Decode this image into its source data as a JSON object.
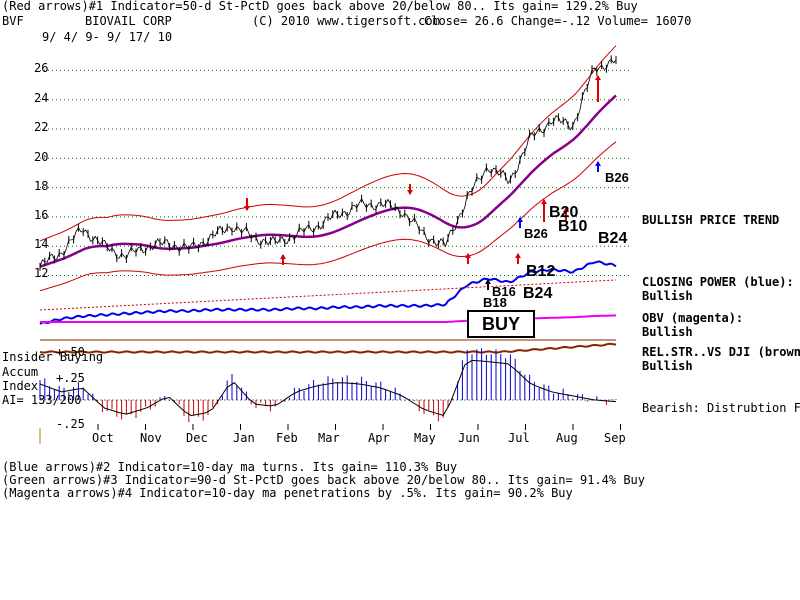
{
  "header": {
    "line1": "(Red arrows)#1 Indicator=50-d St-PctD goes back above 20/below 80.. Its gain= 129.2% Buy",
    "symbol": "BVF",
    "company": "BIOVAIL CORP",
    "copyright": "(C) 2010 www.tigersoft.com",
    "quote": "Close= 26.6  Change=-.12 Volume= 16070",
    "date_range": "9/ 4/ 9- 9/ 17/ 10"
  },
  "side_labels": {
    "trend": "BULLISH PRICE TREND",
    "closing_power": "CLOSING POWER (blue):",
    "closing_power_status": "Bullish",
    "obv": "OBV (magenta):",
    "obv_status": "Bullish",
    "relstr": "REL.STR..VS DJI (brown):",
    "relstr_status": "Bullish",
    "bearish": "Bearish: Distrubtion Falling."
  },
  "panel_labels": {
    "insider": "Insider Buying",
    "accum": "Accum",
    "index": "Index",
    "ai": "AI= 133/200",
    "plus50": "+.50",
    "plus25": "+.25",
    "minus25": "-.25"
  },
  "signals": {
    "buy": "BUY",
    "b26_top": "B26",
    "b20": "B20",
    "b10": "B10",
    "b26_mid": "B26",
    "b24_right": "B24",
    "b12": "B12",
    "b16": "B16",
    "b24_low": "B24",
    "b18": "B18"
  },
  "footer": {
    "line1": "(Blue arrows)#2 Indicator=10-day ma turns. Its gain= 110.3% Buy",
    "line2": "(Green arrows)#3 Indicator=90-d St-PctD goes back above 20/below 80.. Its gain= 91.4% Buy",
    "line3": "(Magenta arrows)#4 Indicator=10-day ma penetrations by .5%. Its gain= 90.2% Buy"
  },
  "colors": {
    "price": "#000000",
    "bands": "#cc0000",
    "ma": "#880088",
    "closing_power": "#0000ee",
    "obv": "#ee00ee",
    "relstr": "#882200",
    "accum_pos": "#0000cc",
    "accum_neg": "#cc0000",
    "grid": "#007700"
  },
  "chart_data": {
    "type": "line",
    "title": "BIOVAIL CORP",
    "xlabel": "",
    "ylabel": "",
    "ylim": [
      11,
      28
    ],
    "yticks": [
      12,
      14,
      16,
      18,
      20,
      22,
      24,
      26
    ],
    "grid": true,
    "x_ticks": [
      "Oct",
      "Nov",
      "Dec",
      "Jan",
      "Feb",
      "Mar",
      "Apr",
      "May",
      "Jun",
      "Jul",
      "Aug",
      "Sep"
    ],
    "x": [
      "2009-09-04",
      "2009-09-18",
      "2009-10-02",
      "2009-10-16",
      "2009-10-30",
      "2009-11-13",
      "2009-11-27",
      "2009-12-11",
      "2009-12-25",
      "2010-01-08",
      "2010-01-22",
      "2010-02-05",
      "2010-02-19",
      "2010-03-05",
      "2010-03-19",
      "2010-04-02",
      "2010-04-16",
      "2010-04-30",
      "2010-05-14",
      "2010-05-28",
      "2010-06-11",
      "2010-06-25",
      "2010-07-09",
      "2010-07-23",
      "2010-08-06",
      "2010-08-20",
      "2010-09-03",
      "2010-09-17"
    ],
    "series": [
      {
        "name": "Price",
        "values": [
          12.6,
          13.6,
          15.2,
          14.0,
          13.3,
          14.0,
          14.2,
          13.8,
          14.6,
          15.4,
          14.6,
          14.2,
          14.8,
          15.4,
          16.2,
          16.8,
          16.9,
          16.4,
          14.8,
          14.0,
          17.2,
          19.5,
          18.4,
          21.4,
          22.6,
          22.3,
          26.2,
          26.6
        ]
      },
      {
        "name": "Closing Power",
        "values": [
          -2.0,
          -1.6,
          -1.4,
          -1.3,
          -1.2,
          -1.1,
          -1.0,
          -1.0,
          -0.9,
          -0.9,
          -0.9,
          -0.9,
          -0.8,
          -0.8,
          -0.7,
          -0.7,
          -0.6,
          -0.6,
          -0.6,
          -0.5,
          1.0,
          1.5,
          1.2,
          2.0,
          2.2,
          2.0,
          2.8,
          2.5
        ]
      },
      {
        "name": "OBV",
        "values": [
          0.0,
          0.0,
          0.0,
          0.0,
          0.0,
          0.0,
          0.0,
          0.0,
          0.0,
          0.0,
          0.0,
          0.0,
          0.0,
          0.0,
          0.0,
          0.0,
          0.0,
          0.0,
          0.0,
          0.0,
          0.1,
          0.2,
          0.25,
          0.3,
          0.35,
          0.4,
          0.5,
          0.55
        ]
      },
      {
        "name": "Accum Index",
        "values": [
          0.2,
          0.1,
          0.15,
          -0.1,
          -0.18,
          -0.1,
          0.05,
          -0.2,
          -0.15,
          0.25,
          -0.05,
          -0.08,
          0.1,
          0.18,
          0.22,
          0.2,
          0.15,
          0.05,
          -0.12,
          -0.2,
          0.5,
          0.48,
          0.45,
          0.2,
          0.1,
          0.05,
          0.0,
          -0.02
        ]
      }
    ]
  }
}
